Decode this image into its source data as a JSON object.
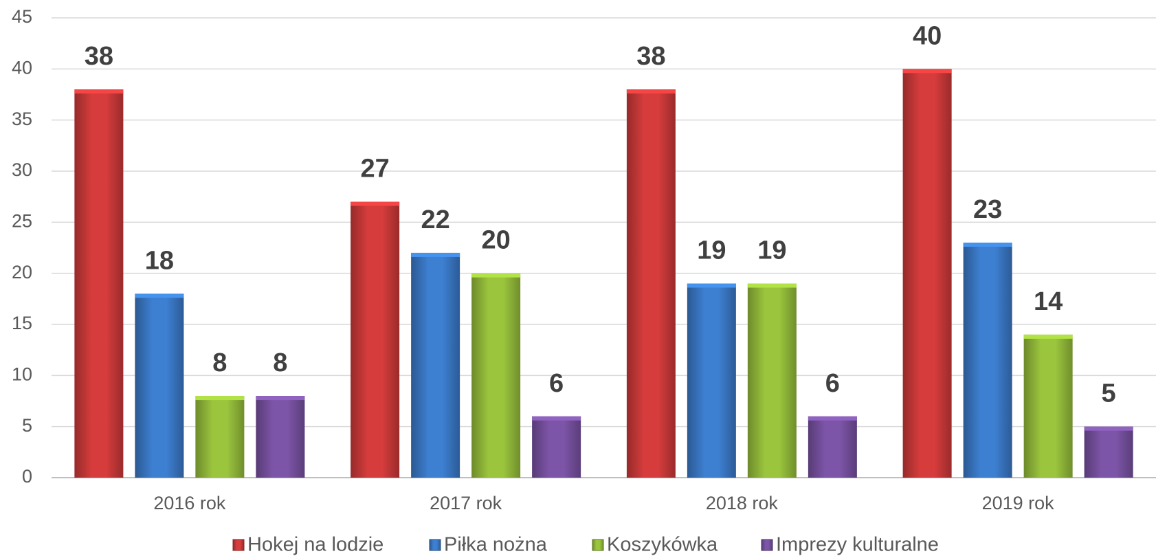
{
  "chart_data": {
    "type": "bar",
    "categories": [
      "2016 rok",
      "2017 rok",
      "2018 rok",
      "2019 rok"
    ],
    "series": [
      {
        "name": "Hokej na lodzie",
        "color": "#d63c3c",
        "values": [
          38,
          27,
          38,
          40
        ]
      },
      {
        "name": "Piłka nożna",
        "color": "#3d7fd0",
        "values": [
          18,
          22,
          19,
          23
        ]
      },
      {
        "name": "Koszykówka",
        "color": "#9bc53d",
        "values": [
          8,
          20,
          19,
          14
        ]
      },
      {
        "name": "Imprezy kulturalne",
        "color": "#7d55a8",
        "values": [
          8,
          6,
          6,
          5
        ]
      }
    ],
    "ylim": [
      0,
      45
    ],
    "yticks": [
      0,
      5,
      10,
      15,
      20,
      25,
      30,
      35,
      40,
      45
    ],
    "grid": true,
    "legend": "bottom"
  }
}
